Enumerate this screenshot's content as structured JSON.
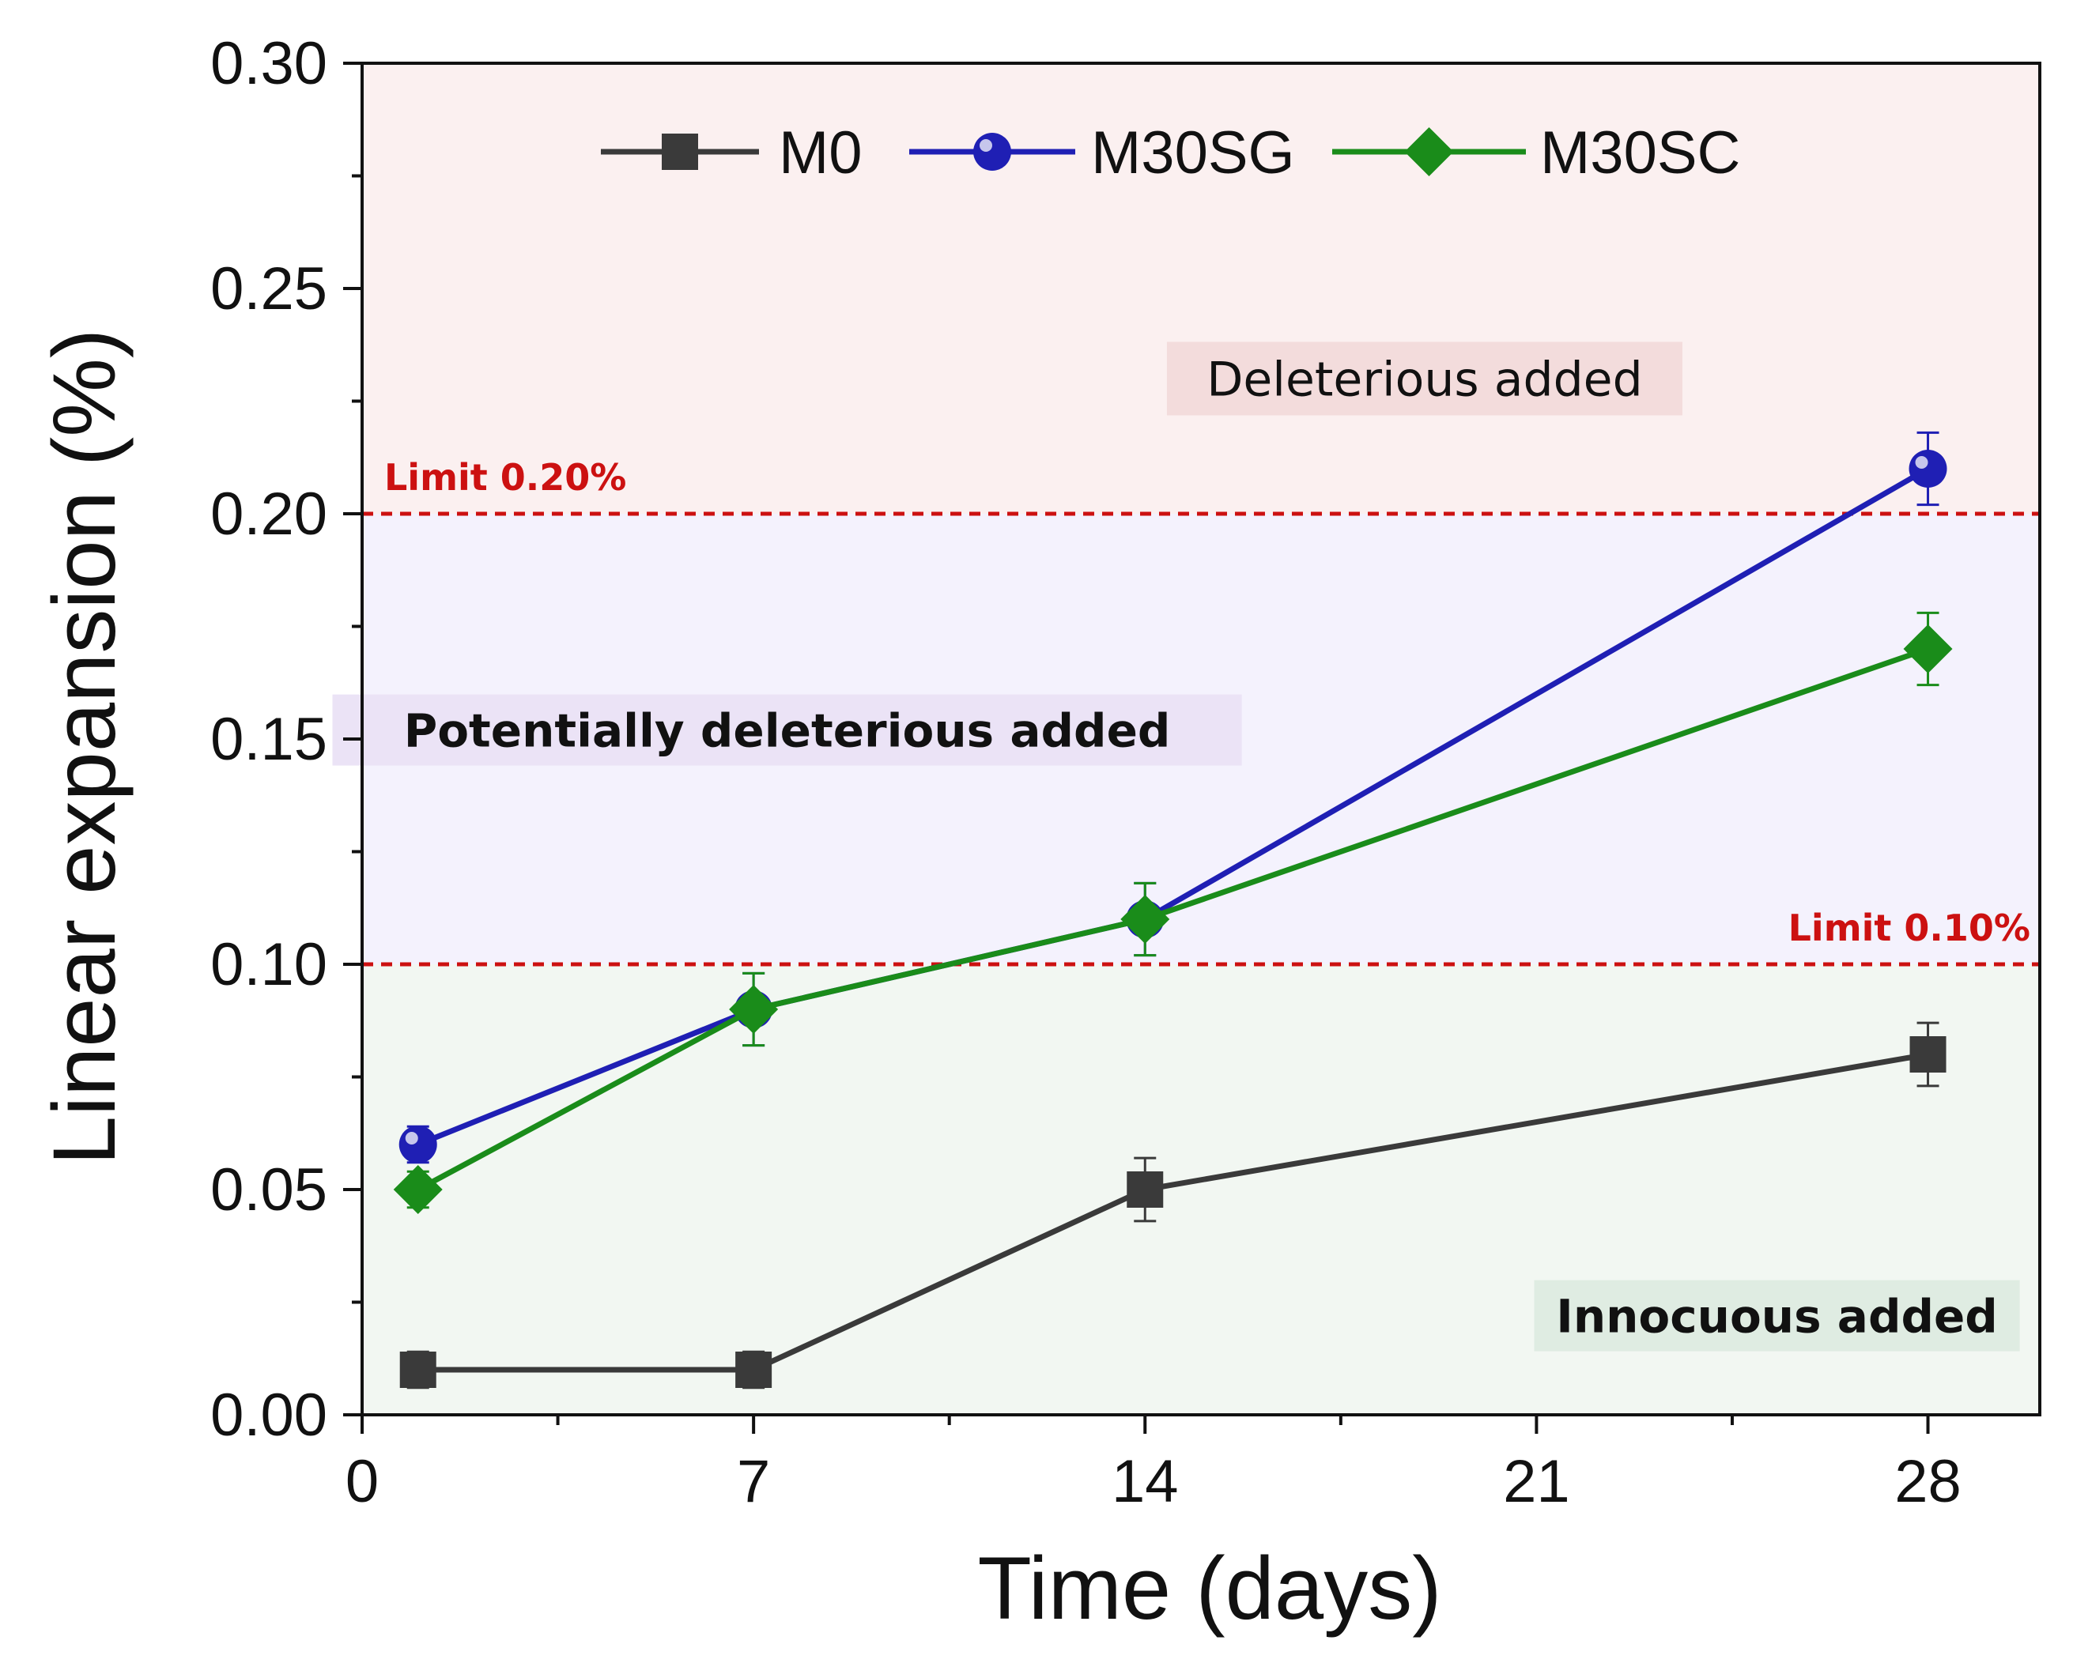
{
  "chart_data": {
    "type": "line",
    "xlabel": "Time (days)",
    "ylabel": "Linear expansion (%)",
    "xlim": [
      0,
      30
    ],
    "ylim": [
      0,
      0.3
    ],
    "x_ticks": [
      0,
      7,
      14,
      21,
      28
    ],
    "x_tick_labels": [
      "0",
      "7",
      "14",
      "21",
      "28"
    ],
    "y_ticks": [
      0,
      0.05,
      0.1,
      0.15,
      0.2,
      0.25,
      0.3
    ],
    "y_tick_labels": [
      "0.00",
      "0.05",
      "0.10",
      "0.15",
      "0.20",
      "0.25",
      "0.30"
    ],
    "legend_position": "top",
    "series": [
      {
        "name": "M0",
        "color": "#3a3a3a",
        "marker": "square",
        "x": [
          1,
          7,
          14,
          28
        ],
        "values": [
          0.01,
          0.01,
          0.05,
          0.08
        ],
        "errors": [
          0.004,
          0.004,
          0.007,
          0.007
        ]
      },
      {
        "name": "M30SG",
        "color": "#1f1fb4",
        "marker": "circle",
        "x": [
          1,
          7,
          14,
          28
        ],
        "values": [
          0.06,
          0.09,
          0.11,
          0.21
        ],
        "errors": [
          0.004,
          0.008,
          0.008,
          0.008
        ]
      },
      {
        "name": "M30SC",
        "color": "#1a8c1a",
        "marker": "diamond",
        "x": [
          1,
          7,
          14,
          28
        ],
        "values": [
          0.05,
          0.09,
          0.11,
          0.17
        ],
        "errors": [
          0.004,
          0.008,
          0.008,
          0.008
        ]
      }
    ],
    "limits": [
      {
        "value": 0.2,
        "label": "Limit 0.20%",
        "label_side": "left"
      },
      {
        "value": 0.1,
        "label": "Limit 0.10%",
        "label_side": "right"
      }
    ],
    "regions": [
      {
        "from": 0.2,
        "to": 0.3,
        "color": "#fbf0f0",
        "label": "Deleterious added",
        "label_bg": "#f3dcdc",
        "label_x": 19,
        "label_y": 0.23,
        "bold": false
      },
      {
        "from": 0.1,
        "to": 0.2,
        "color": "#f4f2fd",
        "label": "Potentially deleterious added",
        "label_bg": "#ebe3f6",
        "label_x": 7.6,
        "label_y": 0.152,
        "bold": true
      },
      {
        "from": 0.0,
        "to": 0.1,
        "color": "#f2f7f2",
        "label": "Innocuous added",
        "label_bg": "#dfece2",
        "label_x": 25.3,
        "label_y": 0.022,
        "bold": true
      }
    ]
  }
}
